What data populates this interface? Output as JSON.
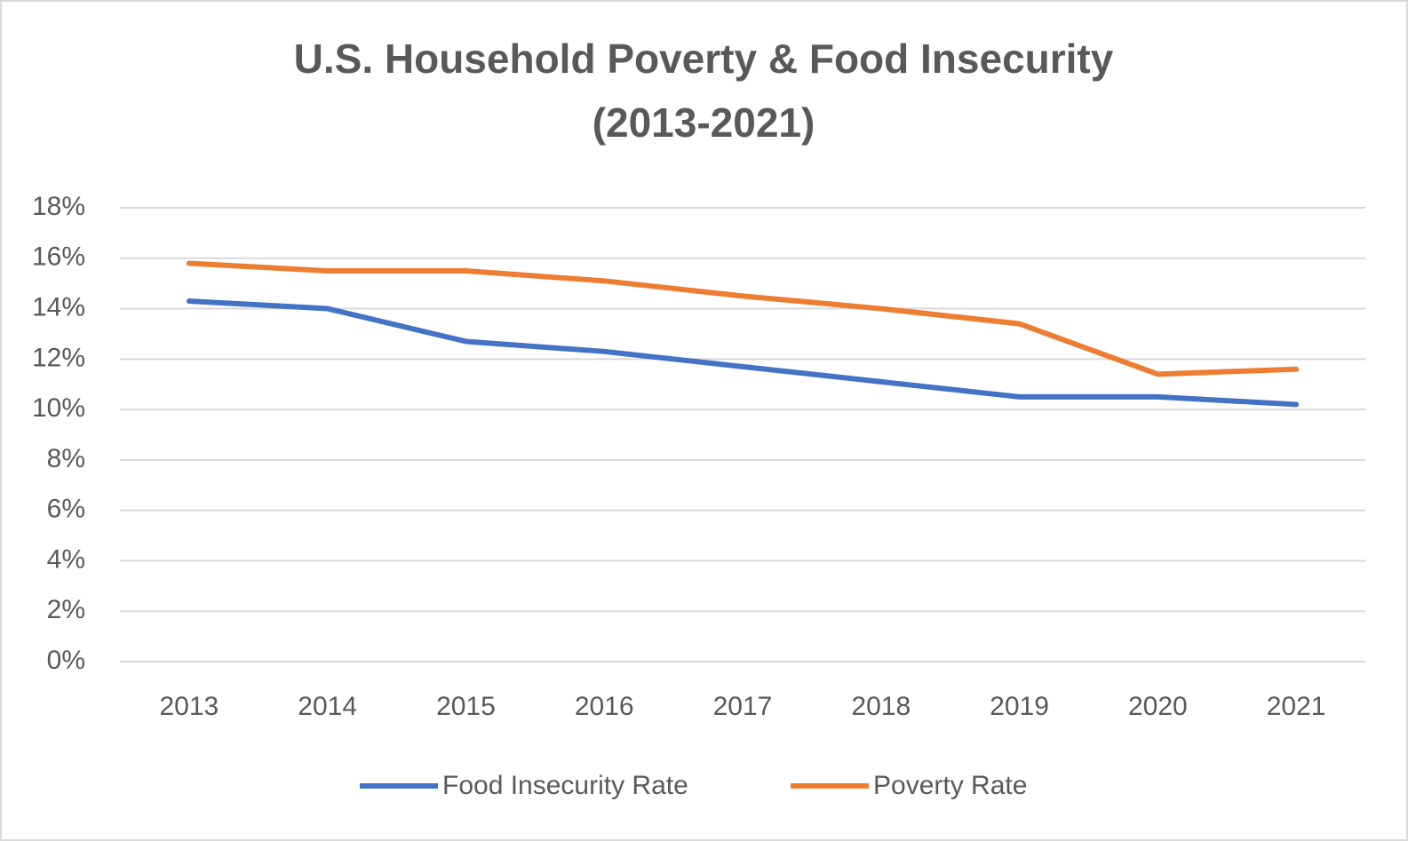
{
  "chart_data": {
    "type": "line",
    "title": "U.S. Household Poverty & Food Insecurity",
    "subtitle": "(2013-2021)",
    "categories": [
      "2013",
      "2014",
      "2015",
      "2016",
      "2017",
      "2018",
      "2019",
      "2020",
      "2021"
    ],
    "series": [
      {
        "name": "Food Insecurity Rate",
        "color": "#4472c4",
        "values": [
          14.3,
          14.0,
          12.7,
          12.3,
          11.7,
          11.1,
          10.5,
          10.5,
          10.2
        ]
      },
      {
        "name": "Poverty Rate",
        "color": "#ed7d31",
        "values": [
          15.8,
          15.5,
          15.5,
          15.1,
          14.5,
          14.0,
          13.4,
          11.4,
          11.6
        ]
      }
    ],
    "ylim": [
      0,
      18
    ],
    "yticks": [
      {
        "value": 0,
        "label": "0%"
      },
      {
        "value": 2,
        "label": "2%"
      },
      {
        "value": 4,
        "label": "4%"
      },
      {
        "value": 6,
        "label": "6%"
      },
      {
        "value": 8,
        "label": "8%"
      },
      {
        "value": 10,
        "label": "10%"
      },
      {
        "value": 12,
        "label": "12%"
      },
      {
        "value": 14,
        "label": "14%"
      },
      {
        "value": 16,
        "label": "16%"
      },
      {
        "value": 18,
        "label": "18%"
      }
    ],
    "grid": true,
    "legend": "bottom"
  }
}
